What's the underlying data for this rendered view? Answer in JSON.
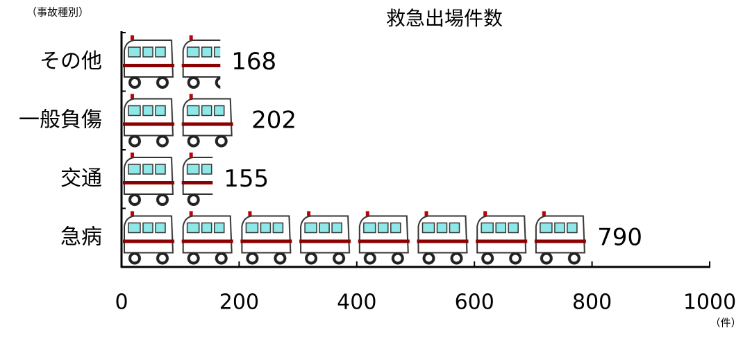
{
  "chart_data": {
    "type": "pictograph-bar",
    "title": "救急出場件数",
    "y_axis_label": "（事故種別）",
    "x_axis_label": "（件）",
    "categories": [
      "その他",
      "一般負傷",
      "交通",
      "急病"
    ],
    "values": [
      168,
      202,
      155,
      790
    ],
    "xlim": [
      0,
      1000
    ],
    "xticks": [
      0,
      200,
      400,
      600,
      800,
      1000
    ]
  }
}
